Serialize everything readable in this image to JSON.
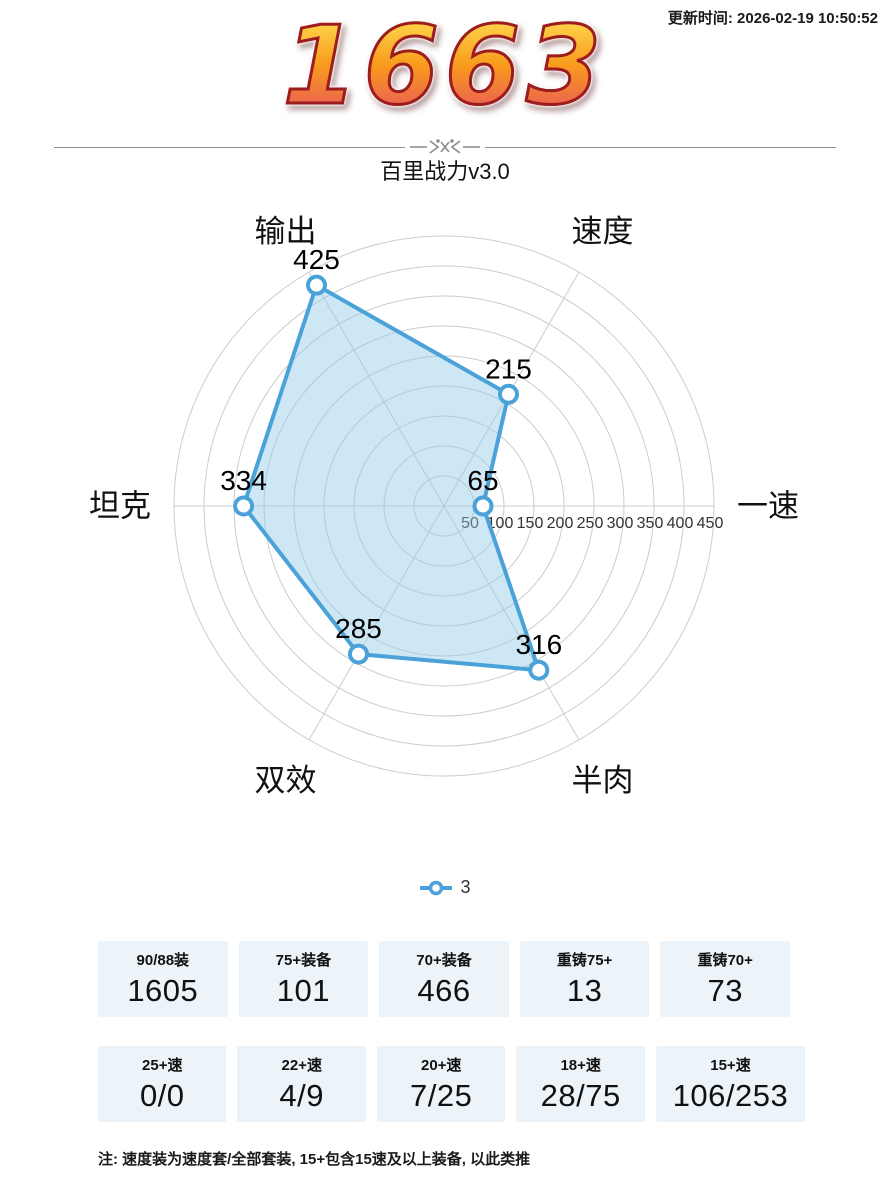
{
  "header": {
    "update_time": "更新时间: 2026-02-19 10:50:52",
    "power_value": "1663",
    "subtitle": "百里战力v3.0",
    "power_colors": {
      "top": "#ffd94e",
      "mid": "#f89b1c",
      "bottom": "#e94f63",
      "outline": "#9c1d20"
    }
  },
  "theme": {
    "card_bg": "#ecf4f9",
    "accent_blue": "#4aa2d8"
  },
  "chart_data": {
    "type": "radar",
    "title": "",
    "categories": [
      "输出",
      "速度",
      "一速",
      "半肉",
      "双效",
      "坦克"
    ],
    "angles_deg": [
      120,
      60,
      0,
      300,
      240,
      180
    ],
    "series": [
      {
        "name": "3",
        "values": [
          425,
          215,
          65,
          316,
          285,
          334
        ]
      }
    ],
    "radial_ticks": [
      50,
      100,
      150,
      200,
      250,
      300,
      350,
      400,
      450
    ],
    "radial_max": 450,
    "grid_shape": "circle",
    "grid_on": true,
    "legend_position": "bottom",
    "colors": {
      "line": "#4aa2d8",
      "fill": "rgba(144,202,233,0.45)",
      "grid": "#cccccc",
      "text": "#111111",
      "tick_text": "#333333"
    }
  },
  "legend": {
    "label": "3"
  },
  "stats": {
    "rows": [
      {
        "cards": [
          {
            "label": "90/88装",
            "value": "1605"
          },
          {
            "label": "75+装备",
            "value": "101"
          },
          {
            "label": "70+装备",
            "value": "466"
          },
          {
            "label": "重铸75+",
            "value": "13"
          },
          {
            "label": "重铸70+",
            "value": "73"
          }
        ]
      },
      {
        "cards": [
          {
            "label": "25+速",
            "value": "0/0"
          },
          {
            "label": "22+速",
            "value": "4/9"
          },
          {
            "label": "20+速",
            "value": "7/25"
          },
          {
            "label": "18+速",
            "value": "28/75"
          },
          {
            "label": "15+速",
            "value": "106/253"
          }
        ]
      }
    ]
  },
  "footnote": "注: 速度装为速度套/全部套装, 15+包含15速及以上装备, 以此类推"
}
